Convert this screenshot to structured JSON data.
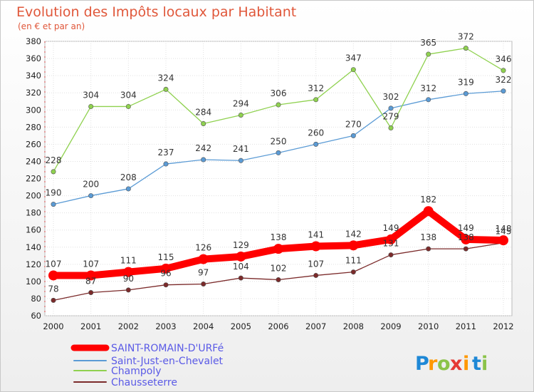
{
  "chart_data": {
    "type": "line",
    "title": "Evolution des Impôts locaux par Habitant",
    "subtitle": "(en € et par an)",
    "x": [
      "2000",
      "2001",
      "2002",
      "2003",
      "2004",
      "2005",
      "2006",
      "2007",
      "2008",
      "2009",
      "2010",
      "2011",
      "2012"
    ],
    "ylim": [
      60,
      380
    ],
    "yticks": [
      60,
      80,
      100,
      120,
      140,
      160,
      180,
      200,
      220,
      240,
      260,
      280,
      300,
      320,
      340,
      360,
      380
    ],
    "grid": true,
    "legend_position": "bottom-left",
    "series": [
      {
        "name": "SAINT-ROMAIN-D'URFé",
        "color": "#ff0000",
        "values": [
          107,
          107,
          111,
          115,
          126,
          129,
          138,
          141,
          142,
          149,
          182,
          149,
          148
        ]
      },
      {
        "name": "Saint-Just-en-Chevalet",
        "color": "#5b9bd5",
        "values": [
          190,
          200,
          208,
          237,
          242,
          241,
          250,
          260,
          270,
          302,
          312,
          319,
          322
        ]
      },
      {
        "name": "Champoly",
        "color": "#8fd14f",
        "values": [
          228,
          304,
          304,
          324,
          284,
          294,
          306,
          312,
          347,
          279,
          365,
          372,
          346
        ]
      },
      {
        "name": "Chausseterre",
        "color": "#7b2a2a",
        "values": [
          78,
          87,
          90,
          96,
          97,
          104,
          102,
          107,
          111,
          131,
          138,
          138,
          145
        ]
      }
    ]
  },
  "brand": {
    "letters": [
      "P",
      "r",
      "o",
      "x",
      "i",
      "t",
      "i"
    ],
    "colors": [
      "#1e88d6",
      "#ff9800",
      "#8bc34a",
      "#e53935",
      "#ff9800",
      "#1e88d6",
      "#8bc34a"
    ]
  }
}
